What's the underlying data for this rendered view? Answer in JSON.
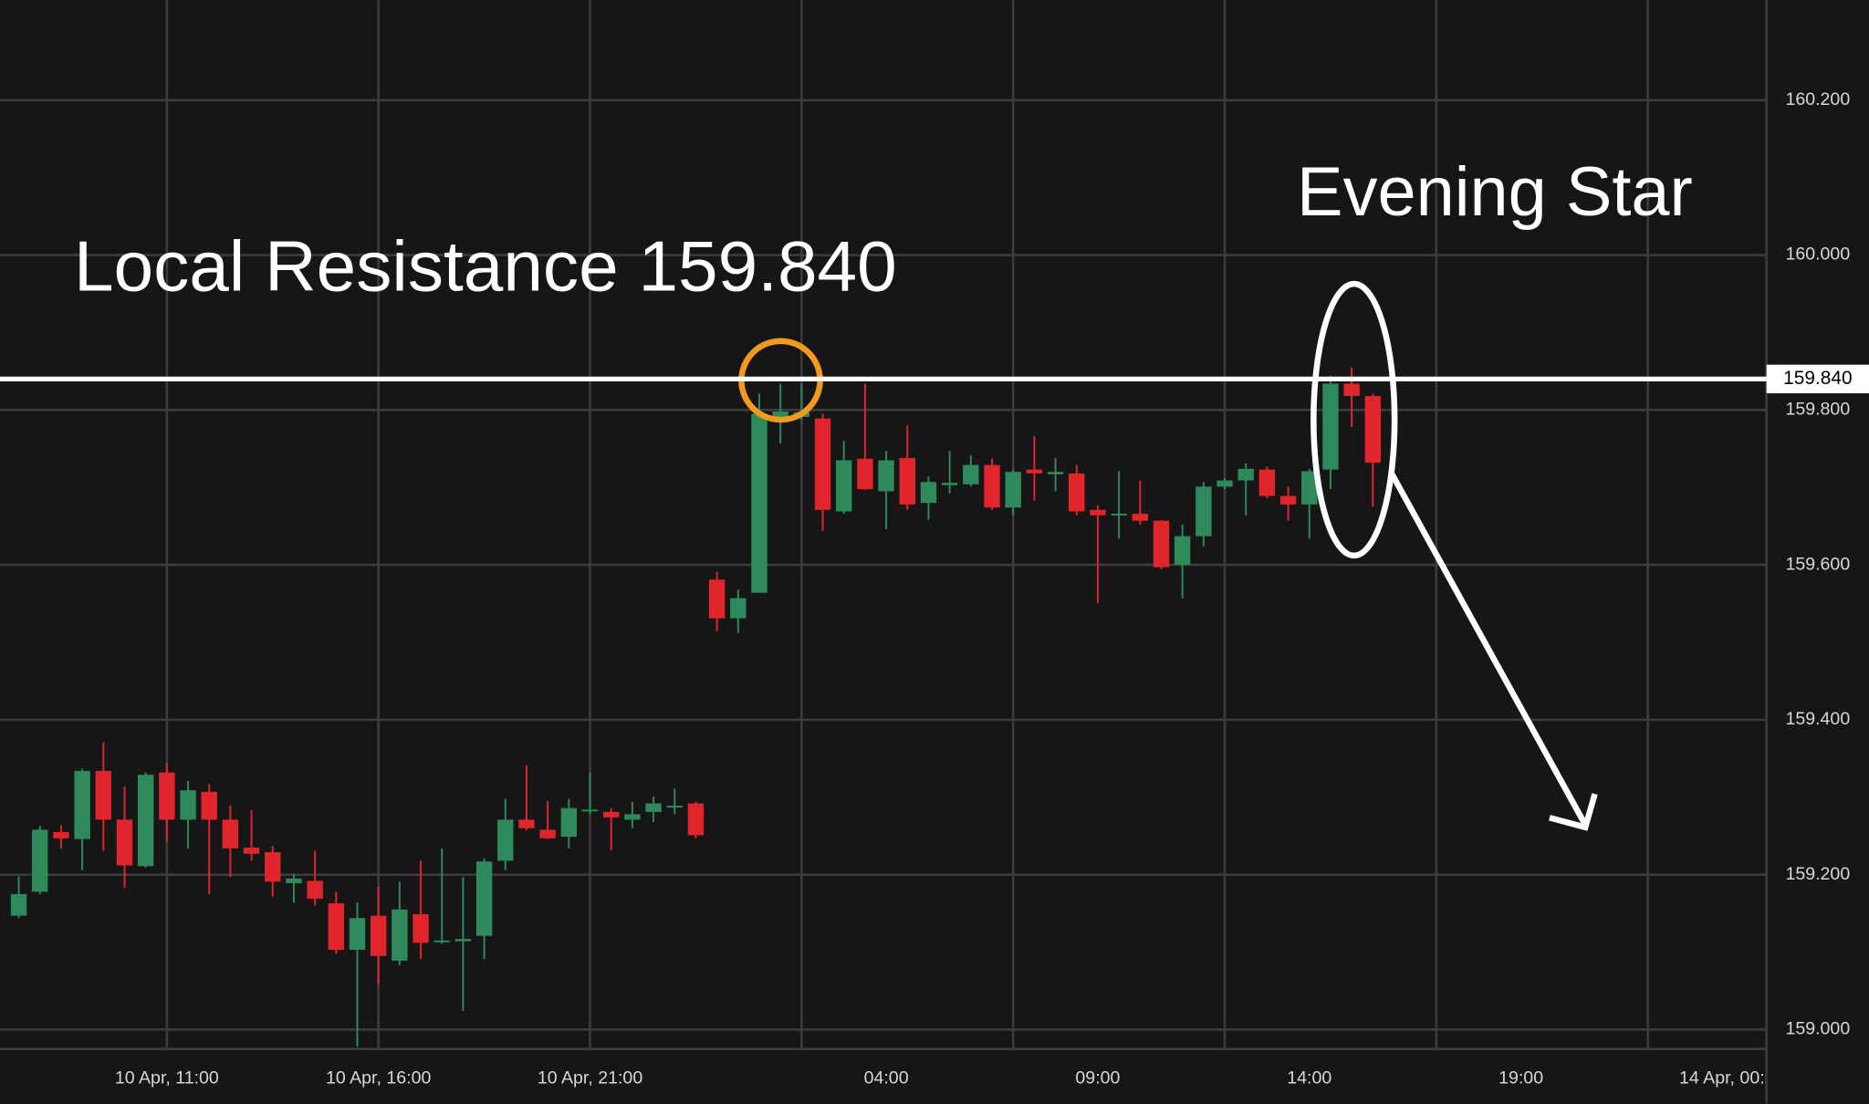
{
  "chart_data": {
    "type": "candlestick",
    "annotations": {
      "resistance_text": "Local Resistance 159.840",
      "pattern_text": "Evening Star"
    },
    "resistance": {
      "value": 159.84,
      "label": "159.840"
    },
    "up_color": "#2f8a5b",
    "down_color": "#e0262c",
    "grid": true,
    "x": [
      0,
      1,
      2,
      3,
      4,
      5,
      6,
      7,
      8,
      9,
      10,
      11,
      12,
      13,
      14,
      15,
      16,
      17,
      18,
      19,
      20,
      21,
      22,
      23,
      24,
      25,
      26,
      27,
      28,
      29,
      30,
      31,
      32,
      33,
      34,
      35,
      36,
      37,
      38,
      39,
      40,
      41,
      42,
      43,
      44,
      45,
      46,
      47,
      48,
      49,
      50,
      51,
      52,
      53,
      54,
      55,
      56,
      57,
      58,
      59,
      60,
      61,
      62,
      63,
      64
    ],
    "open": [
      159.147,
      159.178,
      159.255,
      159.246,
      159.334,
      159.271,
      159.211,
      159.332,
      159.271,
      159.307,
      159.271,
      159.235,
      159.229,
      159.189,
      159.192,
      159.163,
      159.103,
      159.147,
      159.089,
      159.149,
      159.114,
      159.114,
      159.121,
      159.218,
      159.271,
      159.258,
      159.249,
      159.283,
      159.281,
      159.271,
      159.281,
      159.287,
      159.292,
      159.581,
      159.531,
      159.564,
      159.787,
      159.791,
      159.789,
      159.669,
      159.737,
      159.695,
      159.738,
      159.68,
      159.703,
      159.704,
      159.729,
      159.674,
      159.723,
      159.717,
      159.718,
      159.671,
      159.664,
      159.666,
      159.657,
      159.6,
      159.637,
      159.701,
      159.709,
      159.723,
      159.689,
      159.678,
      159.723,
      159.834,
      159.818
    ],
    "high": [
      159.198,
      159.263,
      159.264,
      159.337,
      159.371,
      159.314,
      159.332,
      159.344,
      159.321,
      159.317,
      159.289,
      159.283,
      159.237,
      159.201,
      159.231,
      159.178,
      159.164,
      159.184,
      159.191,
      159.218,
      159.234,
      159.197,
      159.221,
      159.298,
      159.341,
      159.295,
      159.298,
      159.332,
      159.286,
      159.294,
      159.301,
      159.311,
      159.294,
      159.591,
      159.568,
      159.821,
      159.834,
      159.834,
      159.795,
      159.76,
      159.834,
      159.747,
      159.78,
      159.714,
      159.747,
      159.741,
      159.737,
      159.723,
      159.766,
      159.738,
      159.729,
      159.677,
      159.721,
      159.709,
      159.658,
      159.652,
      159.707,
      159.712,
      159.731,
      159.727,
      159.701,
      159.724,
      159.844,
      159.855,
      159.821
    ],
    "low": [
      159.144,
      159.175,
      159.234,
      159.206,
      159.231,
      159.183,
      159.209,
      159.243,
      159.234,
      159.175,
      159.197,
      159.218,
      159.172,
      159.164,
      159.16,
      159.098,
      158.978,
      159.058,
      159.083,
      159.091,
      159.111,
      159.024,
      159.091,
      159.206,
      159.257,
      159.246,
      159.234,
      159.278,
      159.231,
      159.26,
      159.268,
      159.278,
      159.247,
      159.514,
      159.512,
      159.564,
      159.757,
      159.787,
      159.644,
      159.666,
      159.697,
      159.646,
      159.671,
      159.658,
      159.692,
      159.701,
      159.671,
      159.664,
      159.683,
      159.695,
      159.664,
      159.551,
      159.634,
      159.652,
      159.594,
      159.557,
      159.624,
      159.698,
      159.664,
      159.686,
      159.657,
      159.634,
      159.698,
      159.778,
      159.675
    ],
    "close": [
      159.175,
      159.258,
      159.247,
      159.334,
      159.271,
      159.212,
      159.329,
      159.271,
      159.309,
      159.271,
      159.234,
      159.227,
      159.191,
      159.195,
      159.169,
      159.103,
      159.144,
      159.095,
      159.155,
      159.112,
      159.115,
      159.117,
      159.217,
      159.271,
      159.26,
      159.247,
      159.286,
      159.284,
      159.274,
      159.278,
      159.292,
      159.289,
      159.251,
      159.531,
      159.557,
      159.795,
      159.798,
      159.797,
      159.671,
      159.735,
      159.698,
      159.735,
      159.678,
      159.707,
      159.706,
      159.729,
      159.674,
      159.72,
      159.718,
      159.72,
      159.669,
      159.664,
      159.666,
      159.657,
      159.597,
      159.637,
      159.701,
      159.709,
      159.724,
      159.689,
      159.678,
      159.721,
      159.834,
      159.818,
      159.732
    ],
    "xlim": [
      -0.887,
      82.606
    ],
    "xticks": [
      {
        "value": 7,
        "label": "10 Apr, 11:00"
      },
      {
        "value": 17,
        "label": "10 Apr, 16:00"
      },
      {
        "value": 27,
        "label": "10 Apr, 21:00"
      },
      {
        "value": 41,
        "label": "04:00"
      },
      {
        "value": 51,
        "label": "09:00"
      },
      {
        "value": 61,
        "label": "14:00"
      },
      {
        "value": 71,
        "label": "19:00"
      },
      {
        "value": 80.5,
        "label": "14 Apr, 00:"
      }
    ],
    "xgrid": [
      7,
      17,
      27,
      37,
      47,
      57,
      67,
      77
    ],
    "ylim": [
      158.975,
      160.329
    ],
    "yticks": [
      {
        "value": 159,
        "label": "159.000"
      },
      {
        "value": 159.2,
        "label": "159.200"
      },
      {
        "value": 159.4,
        "label": "159.400"
      },
      {
        "value": 159.6,
        "label": "159.600"
      },
      {
        "value": 159.8,
        "label": "159.800"
      },
      {
        "value": 160,
        "label": "160.000"
      },
      {
        "value": 160.2,
        "label": "160.200"
      }
    ]
  }
}
